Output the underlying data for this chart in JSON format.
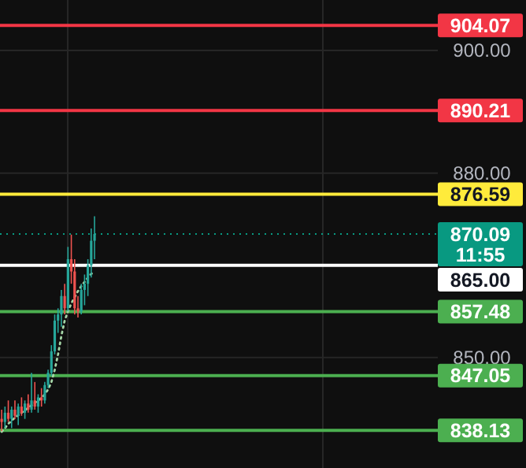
{
  "chart_data": {
    "type": "candlestick",
    "categories": [
      null,
      null,
      null,
      null,
      null,
      null,
      null,
      null,
      null,
      null,
      null,
      null,
      null,
      null,
      null,
      null,
      null,
      null,
      null,
      null,
      null,
      null,
      null,
      null,
      null,
      null,
      null,
      null,
      null,
      null,
      null,
      null,
      null,
      null,
      null,
      null,
      null,
      null,
      null,
      null,
      null,
      null,
      null,
      null,
      null,
      null,
      null,
      null,
      null,
      null,
      null,
      null,
      null,
      null,
      null,
      null,
      null,
      null,
      null,
      null,
      null,
      null,
      null,
      null,
      null,
      null,
      null,
      null,
      null,
      null,
      null,
      null,
      null,
      null,
      null,
      null,
      null,
      null,
      null,
      null,
      null,
      null,
      null,
      null,
      null,
      null,
      null,
      null,
      null,
      null,
      null,
      null,
      null,
      null,
      null,
      null,
      null,
      null,
      null,
      null,
      null,
      null,
      null,
      null,
      null,
      null,
      null,
      null,
      null,
      null,
      null,
      null,
      null,
      null,
      null,
      null,
      null,
      null,
      null,
      null,
      null,
      null,
      null,
      null,
      null,
      null,
      null,
      null,
      null,
      null,
      null,
      null
    ],
    "ohlc": [
      [
        840,
        841.5,
        838,
        839.5
      ],
      [
        839.5,
        842,
        838.5,
        841
      ],
      [
        841,
        843,
        839.5,
        840
      ],
      [
        840,
        842,
        838.5,
        841.5
      ],
      [
        841.5,
        843,
        840,
        840.5
      ],
      [
        840.5,
        842.5,
        839,
        842
      ],
      [
        842,
        843.5,
        840.5,
        841
      ],
      [
        841,
        843,
        840,
        842.5
      ],
      [
        842.5,
        844,
        841,
        841.5
      ],
      [
        841.5,
        847.5,
        841,
        843
      ],
      [
        843,
        846,
        841.5,
        842
      ],
      [
        842,
        844,
        841,
        843.5
      ],
      [
        843.5,
        845,
        842,
        843
      ],
      [
        843,
        846,
        842.5,
        845.5
      ],
      [
        845.5,
        848,
        845,
        847.5
      ],
      [
        847.5,
        852,
        847,
        851
      ],
      [
        851,
        857,
        850.5,
        856
      ],
      [
        856,
        858,
        854,
        857
      ],
      [
        857,
        861,
        855,
        860
      ],
      [
        860,
        862,
        857,
        858
      ],
      [
        858,
        868,
        857.5,
        866
      ],
      [
        866,
        870,
        862,
        864
      ],
      [
        864,
        866,
        857,
        858
      ],
      [
        858,
        860,
        856.5,
        857.5
      ],
      [
        857.5,
        862,
        857,
        861
      ],
      [
        861,
        863.5,
        858.5,
        862
      ],
      [
        862,
        866,
        860,
        865
      ],
      [
        865,
        871,
        863,
        869
      ],
      [
        869,
        873,
        866,
        870.09
      ],
      null,
      null,
      null,
      null,
      null,
      null,
      null,
      null,
      null,
      null,
      null,
      null,
      null,
      null,
      null,
      null,
      null,
      null,
      null,
      null,
      null,
      null,
      null,
      null,
      null,
      null,
      null,
      null,
      null,
      null,
      null,
      null,
      null,
      null,
      null,
      null,
      null,
      null,
      null,
      null,
      null,
      null,
      null,
      null,
      null,
      null,
      null,
      null,
      null,
      null,
      null,
      null,
      null,
      null,
      null,
      null,
      null,
      null,
      null,
      null,
      null,
      null,
      null,
      null,
      null,
      null,
      null,
      null,
      null,
      null,
      null,
      null,
      null,
      null,
      null,
      null,
      null,
      null,
      null,
      null,
      null,
      null,
      null,
      null,
      null,
      null,
      null,
      null,
      null,
      null,
      null,
      null,
      null,
      null,
      null,
      null,
      null,
      null,
      null,
      null,
      null,
      null,
      null
    ],
    "series": [
      {
        "type": "line",
        "color": "#a5d6a7",
        "line_style": "dotted",
        "values": [
          837.9,
          838.5,
          839.2,
          839.7,
          840.2,
          840.6,
          841,
          841.4,
          841.8,
          842.2,
          842.6,
          843,
          843.4,
          844,
          844.8,
          846,
          848,
          850.5,
          853.5,
          856,
          857.5,
          858.8,
          859.8,
          860.8,
          861.6,
          862.3,
          863,
          863.6,
          864.1,
          null,
          null,
          null,
          null,
          null,
          null,
          null,
          null,
          null,
          null,
          null,
          null,
          null,
          null,
          null,
          null,
          null,
          null,
          null,
          null,
          null,
          null,
          null,
          null,
          null,
          null,
          null,
          null,
          null,
          null,
          null,
          null,
          null,
          null,
          null,
          null,
          null,
          null,
          null,
          null,
          null,
          null,
          null,
          null,
          null,
          null,
          null,
          null,
          null,
          null,
          null,
          null,
          null,
          null,
          null,
          null,
          null,
          null,
          null,
          null,
          null,
          null,
          null,
          null,
          null,
          null,
          null,
          null,
          null,
          null,
          null,
          null,
          null,
          null,
          null,
          null,
          null,
          null,
          null,
          null,
          null,
          null,
          null,
          null,
          null,
          null,
          null,
          null,
          null,
          null,
          null,
          null,
          null,
          null,
          null,
          null,
          null,
          null,
          null,
          null,
          null,
          null,
          null
        ]
      }
    ],
    "ylim": [
      832,
      908.2
    ],
    "yticks": [
      {
        "value": 900,
        "label": "900.00"
      },
      {
        "value": 880,
        "label": "880.00"
      },
      {
        "value": 850,
        "label": "850.00"
      }
    ],
    "tick_labels": "y",
    "grid": true,
    "ref_lines": [
      {
        "axis": "y",
        "value": 904.07,
        "label": "904.07",
        "color": "#f23645"
      },
      {
        "axis": "y",
        "value": 890.21,
        "label": "890.21",
        "color": "#f23645"
      },
      {
        "axis": "y",
        "value": 876.59,
        "label": "876.59",
        "color": "#ffeb3b"
      },
      {
        "axis": "y",
        "value": 870.09,
        "label": "870.09",
        "color": "#089981",
        "line_style": "dotted"
      },
      {
        "axis": "y",
        "value": 865,
        "label": "865.00",
        "color": "#ffffff"
      },
      {
        "axis": "y",
        "value": 857.48,
        "label": "857.48",
        "color": "#4caf50"
      },
      {
        "axis": "y",
        "value": 847.05,
        "label": "847.05",
        "color": "#4caf50"
      },
      {
        "axis": "y",
        "value": 838.13,
        "label": "838.13",
        "color": "#4caf50"
      }
    ],
    "annotations": [
      "11:55"
    ]
  }
}
